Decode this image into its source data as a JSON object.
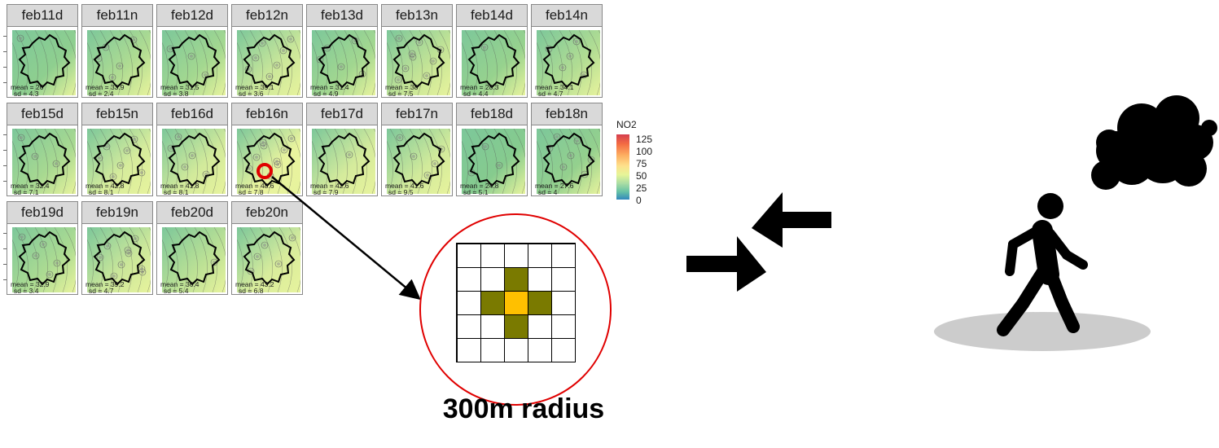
{
  "panels": [
    {
      "label": "feb11d",
      "mean": "mean = 26",
      "sd": "sd = 4.3",
      "tone": "#8fcf8f"
    },
    {
      "label": "feb11n",
      "mean": "mean = 33.9",
      "sd": "sd = 2.4",
      "tone": "#b0dc92"
    },
    {
      "label": "feb12d",
      "mean": "mean = 31.5",
      "sd": "sd = 3.8",
      "tone": "#a4d890"
    },
    {
      "label": "feb12n",
      "mean": "mean = 39.1",
      "sd": "sd = 3.6",
      "tone": "#cbe79a"
    },
    {
      "label": "feb13d",
      "mean": "mean = 31.4",
      "sd": "sd = 4.9",
      "tone": "#a2d790"
    },
    {
      "label": "feb13n",
      "mean": "mean = 38",
      "sd": "sd = 7.5",
      "tone": "#c4e496"
    },
    {
      "label": "feb14d",
      "mean": "mean = 28.3",
      "sd": "sd = 4.4",
      "tone": "#97d28e"
    },
    {
      "label": "feb14n",
      "mean": "mean = 34.1",
      "sd": "sd = 4.7",
      "tone": "#b2dd93"
    },
    {
      "label": "feb15d",
      "mean": "mean = 32.4",
      "sd": "sd = 7.1",
      "tone": "#a8d991"
    },
    {
      "label": "feb15n",
      "mean": "mean = 42.8",
      "sd": "sd = 8.1",
      "tone": "#d6ec9c"
    },
    {
      "label": "feb16d",
      "mean": "mean = 41.8",
      "sd": "sd = 8.1",
      "tone": "#d2ea9b"
    },
    {
      "label": "feb16n",
      "mean": "mean = 48.6",
      "sd": "sd = 7.8",
      "tone": "#e8f39e"
    },
    {
      "label": "feb17d",
      "mean": "mean = 42.6",
      "sd": "sd = 7.9",
      "tone": "#d5eb9c"
    },
    {
      "label": "feb17n",
      "mean": "mean = 41.6",
      "sd": "sd = 9.5",
      "tone": "#d1ea9b"
    },
    {
      "label": "feb18d",
      "mean": "mean = 24.8",
      "sd": "sd = 5.1",
      "tone": "#86cb8e"
    },
    {
      "label": "feb18n",
      "mean": "mean = 27.6",
      "sd": "sd = 4",
      "tone": "#94d08e"
    },
    {
      "label": "feb19d",
      "mean": "mean = 32.9",
      "sd": "sd = 3.4",
      "tone": "#acdb92"
    },
    {
      "label": "feb19n",
      "mean": "mean = 39.2",
      "sd": "sd = 4.7",
      "tone": "#cbe79a"
    },
    {
      "label": "feb20d",
      "mean": "mean = 36.4",
      "sd": "sd = 5.4",
      "tone": "#bce195"
    },
    {
      "label": "feb20n",
      "mean": "mean = 43.2",
      "sd": "sd = 6.8",
      "tone": "#d8ec9c"
    }
  ],
  "legend": {
    "title": "NO2",
    "labels": [
      "125",
      "100",
      "75",
      "50",
      "25",
      "0"
    ]
  },
  "radius_label": "300m radius",
  "colors": {
    "highlight_circle": "#e00000",
    "grid_center": "#ffc000",
    "grid_neighbors": "#7a7a00",
    "shadow": "#cccccc",
    "icon": "#000000"
  }
}
